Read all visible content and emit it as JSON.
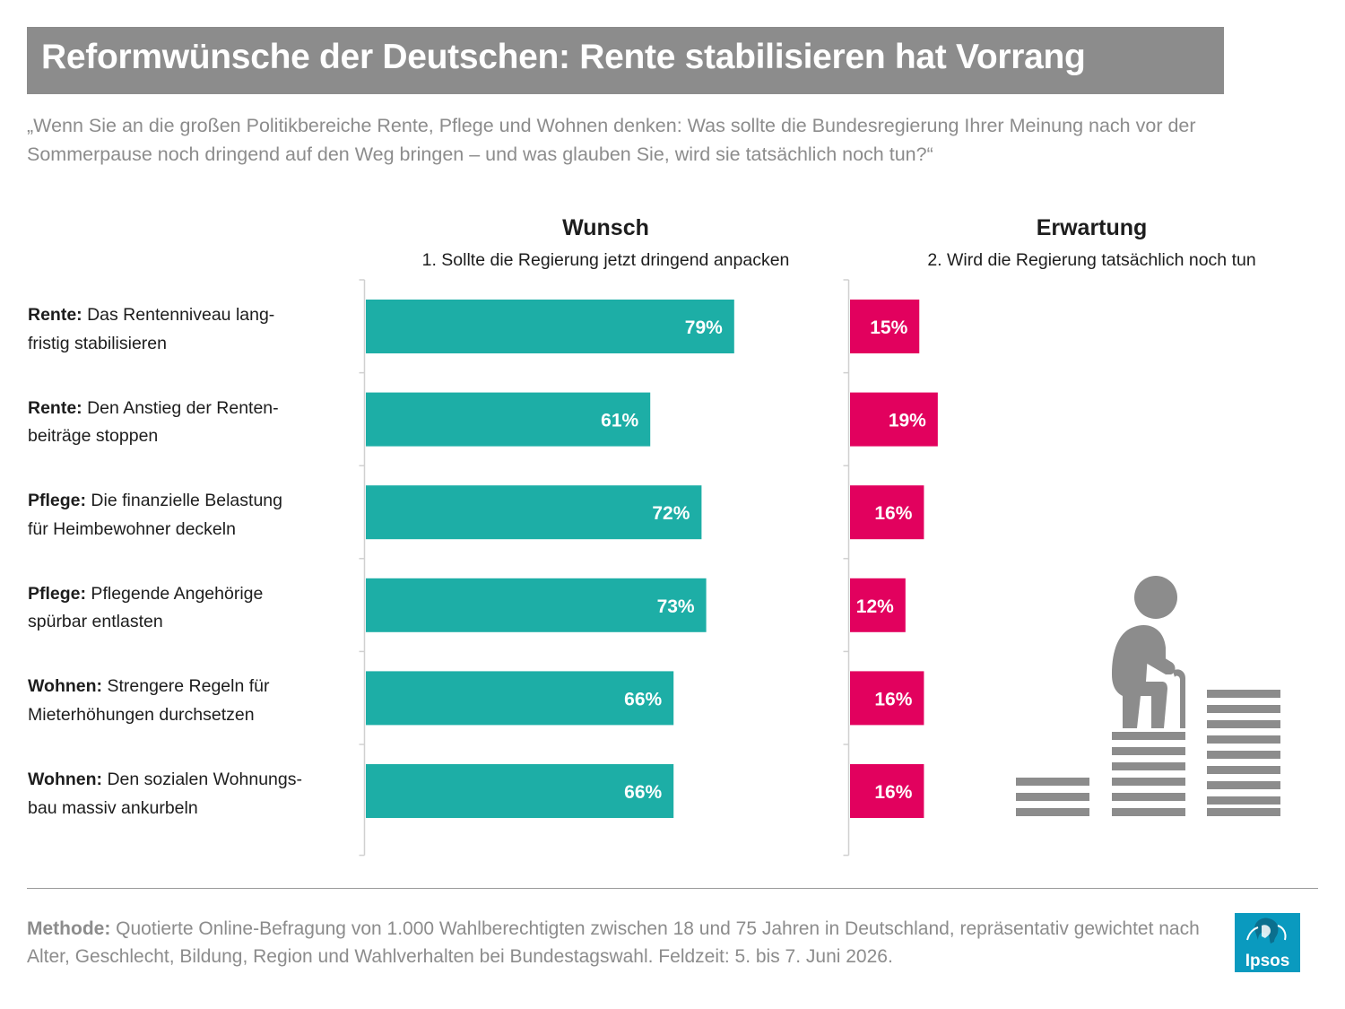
{
  "title": "Reformwünsche der Deutschen: Rente stabilisieren hat Vorrang",
  "subtitle": "„Wenn Sie an die großen Politikbereiche Rente, Pflege und Wohnen denken: Was sollte die Bundesregierung Ihrer Meinung nach vor der Sommerpause noch dringend auf den Weg bringen – und was glauben Sie, wird sie tatsächlich noch tun?“",
  "chart_data": {
    "type": "bar",
    "orientation": "horizontal",
    "categories": [
      {
        "topic": "Rente:",
        "line1": "Das Rentenniveau lang-",
        "line2": "fristig stabilisieren"
      },
      {
        "topic": "Rente:",
        "line1": "Den Anstieg der Renten-",
        "line2": "beiträge stoppen"
      },
      {
        "topic": "Pflege:",
        "line1": "Die finanzielle Belastung",
        "line2": "für Heimbewohner deckeln"
      },
      {
        "topic": "Pflege:",
        "line1": "Pflegende Angehörige",
        "line2": "spürbar entlasten"
      },
      {
        "topic": "Wohnen:",
        "line1": "Strengere Regeln für",
        "line2": "Mieterhöhungen durchsetzen"
      },
      {
        "topic": "Wohnen:",
        "line1": "Den sozialen Wohnungs-",
        "line2": "bau massiv ankurbeln"
      }
    ],
    "series": [
      {
        "name": "Wunsch",
        "description": "1. Sollte die Regierung jetzt dringend anpacken",
        "color": "#1daea6",
        "values": [
          79,
          61,
          72,
          73,
          66,
          66
        ],
        "labels": [
          "79%",
          "61%",
          "72%",
          "73%",
          "66%",
          "66%"
        ]
      },
      {
        "name": "Erwartung",
        "description": "2. Wird die Regierung tatsächlich noch tun",
        "color": "#e2015e",
        "values": [
          15,
          19,
          16,
          12,
          16,
          16
        ],
        "labels": [
          "15%",
          "19%",
          "16%",
          "12%",
          "16%",
          "16%"
        ]
      }
    ],
    "unit": "%",
    "xlim": [
      0,
      100
    ],
    "grid": false,
    "legend": "none"
  },
  "footer": {
    "method_label": "Methode:",
    "method_text": " Quotierte Online-Befragung von 1.000 Wahlberechtigten zwischen 18 und 75 Jahren in Deutschland, repräsentativ gewichtet nach Alter, Geschlecht, Bildung, Region und Wahlverhalten bei Bundestagswahl. Feldzeit: 5. bis 7. Juni 2026."
  },
  "logo": {
    "text": "Ipsos",
    "color": "#0a9abf",
    "icon": "ipsos-logo"
  },
  "illustration": {
    "icon": "elderly-person-on-coin-stacks-icon",
    "color": "#8c8c8c"
  }
}
